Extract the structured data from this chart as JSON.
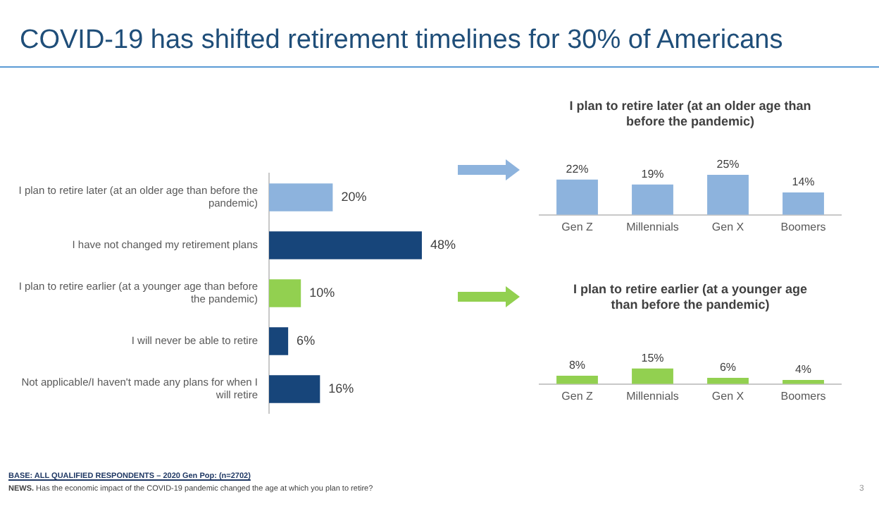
{
  "chart_data": [
    {
      "type": "bar",
      "orientation": "horizontal",
      "title": "COVID-19 has shifted retirement timelines for 30% of Americans",
      "categories": [
        "I plan to retire later (at an older age than before the pandemic)",
        "I have not changed my retirement plans",
        "I plan to retire earlier (at a younger age than before the pandemic)",
        "I will never be able to retire",
        "Not applicable/I haven't made any plans for when I will retire"
      ],
      "values": [
        20,
        48,
        10,
        6,
        16
      ],
      "value_labels": [
        "20%",
        "48%",
        "10%",
        "6%",
        "16%"
      ],
      "colors": [
        "#8db3dd",
        "#17457a",
        "#92d050",
        "#17457a",
        "#17457a"
      ],
      "tick_labels": "y",
      "grid": false,
      "legend": false,
      "annotations": [
        "BASE: ALL QUALIFIED RESPONDENTS – 2020 Gen Pop: (n=2702)",
        "NEWS. Has the economic impact of the COVID-19 pandemic changed the age at which you plan to retire?",
        "3"
      ]
    },
    {
      "type": "bar",
      "title": "I plan to retire later (at an older age than before the pandemic)",
      "categories": [
        "Gen Z",
        "Millennials",
        "Gen X",
        "Boomers"
      ],
      "values": [
        22,
        19,
        25,
        14
      ],
      "value_labels": [
        "22%",
        "19%",
        "25%",
        "14%"
      ],
      "color": "#8db3dd",
      "tick_labels": "x",
      "grid": false,
      "legend": false
    },
    {
      "type": "bar",
      "title": "I plan to retire earlier (at a younger age than before the pandemic)",
      "categories": [
        "Gen Z",
        "Millennials",
        "Gen X",
        "Boomers"
      ],
      "values": [
        8,
        15,
        6,
        4
      ],
      "value_labels": [
        "8%",
        "15%",
        "6%",
        "4%"
      ],
      "color": "#92d050",
      "tick_labels": "x",
      "grid": false,
      "legend": false
    }
  ]
}
